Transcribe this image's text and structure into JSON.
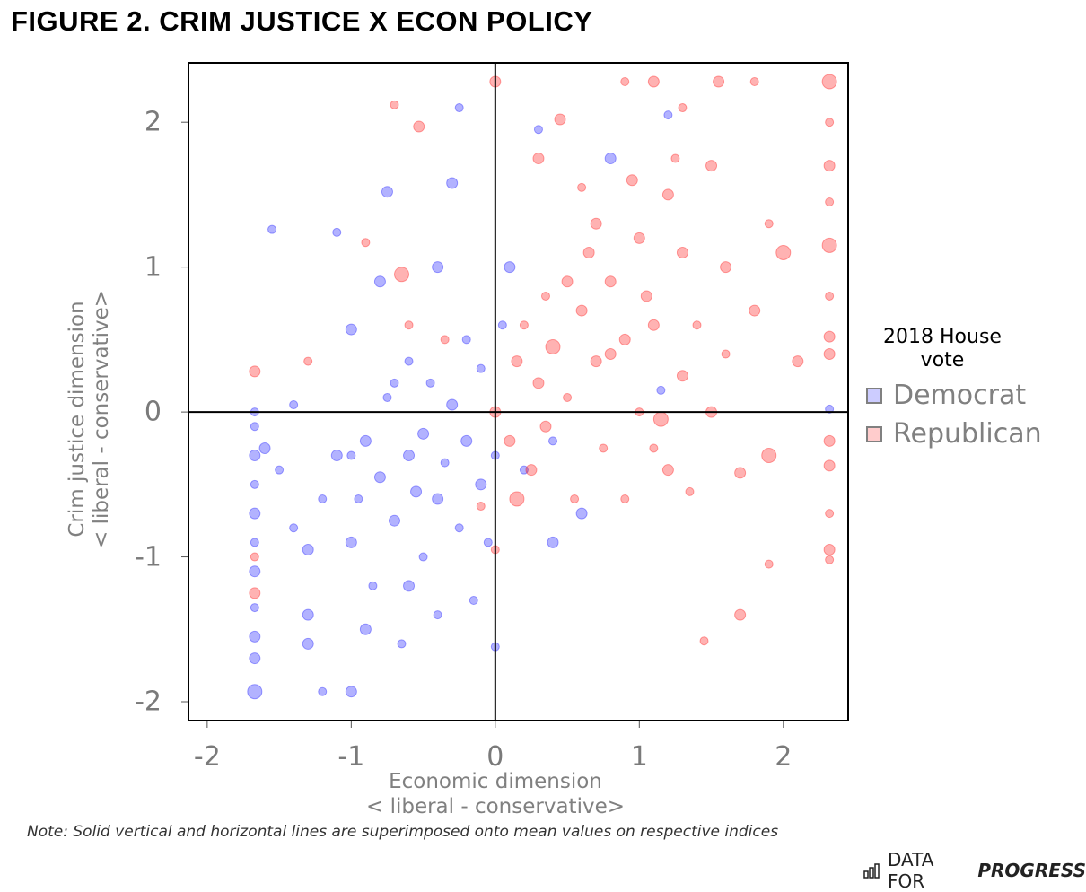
{
  "title": "FIGURE 2. CRIM JUSTICE X ECON POLICY",
  "note": "Note: Solid vertical and horizontal lines are superimposed onto mean values on respective indices",
  "brand": {
    "prefix": "DATA FOR",
    "emphasis": "PROGRESS",
    "icon": "bar-chart-icon"
  },
  "chart_data": {
    "type": "scatter",
    "xlabel": "Economic dimension",
    "xlabel_sub": "< liberal - conservative>",
    "ylabel": "Crim justice dimension",
    "ylabel_sub": "< liberal - conservative>",
    "xlim": [
      -2.13,
      2.45
    ],
    "ylim": [
      -2.13,
      2.41
    ],
    "xticks": [
      -2,
      -1,
      0,
      1,
      2
    ],
    "yticks": [
      -2,
      -1,
      0,
      1,
      2
    ],
    "grid": false,
    "reference_lines": {
      "x": 0,
      "y": 0
    },
    "legend": {
      "title": "2018 House vote",
      "title_line1": "2018 House",
      "title_line2": "vote",
      "placement": "right"
    },
    "series": [
      {
        "name": "Democrat",
        "color": "#0000ff",
        "key_color": "#ccccff",
        "points": [
          [
            -1.67,
            -1.93,
            3
          ],
          [
            -1.67,
            -1.7,
            2
          ],
          [
            -1.67,
            -1.55,
            2
          ],
          [
            -1.67,
            -1.35,
            1
          ],
          [
            -1.67,
            -1.1,
            2
          ],
          [
            -1.67,
            -0.9,
            1
          ],
          [
            -1.67,
            -0.7,
            2
          ],
          [
            -1.67,
            -0.5,
            1
          ],
          [
            -1.67,
            -0.3,
            2
          ],
          [
            -1.67,
            -0.1,
            1
          ],
          [
            -1.67,
            0,
            1
          ],
          [
            -1.6,
            -0.25,
            2
          ],
          [
            -1.5,
            -0.4,
            1
          ],
          [
            -1.4,
            -0.8,
            1
          ],
          [
            -1.3,
            -1.4,
            2
          ],
          [
            -1.3,
            -0.95,
            2
          ],
          [
            -1.2,
            -0.6,
            1
          ],
          [
            -1.2,
            -1.93,
            1
          ],
          [
            -1.1,
            -0.3,
            2
          ],
          [
            -1.0,
            -1.93,
            2
          ],
          [
            -1.0,
            -0.9,
            2
          ],
          [
            -0.95,
            -0.6,
            1
          ],
          [
            -0.9,
            -0.2,
            2
          ],
          [
            -0.85,
            -1.2,
            1
          ],
          [
            -0.8,
            -0.45,
            2
          ],
          [
            -0.75,
            0.1,
            1
          ],
          [
            -0.75,
            1.52,
            2
          ],
          [
            -0.7,
            -0.75,
            2
          ],
          [
            -0.65,
            -1.6,
            1
          ],
          [
            -0.6,
            -0.3,
            2
          ],
          [
            -0.6,
            0.35,
            1
          ],
          [
            -0.55,
            -0.55,
            2
          ],
          [
            -0.5,
            -1.0,
            1
          ],
          [
            -0.5,
            -0.15,
            2
          ],
          [
            -0.45,
            0.2,
            1
          ],
          [
            -0.4,
            -0.6,
            2
          ],
          [
            -0.4,
            -1.4,
            1
          ],
          [
            -0.35,
            -0.35,
            1
          ],
          [
            -0.3,
            0.05,
            2
          ],
          [
            -0.3,
            1.58,
            2
          ],
          [
            -0.25,
            -0.8,
            1
          ],
          [
            -0.2,
            -0.2,
            2
          ],
          [
            -0.2,
            0.5,
            1
          ],
          [
            -0.15,
            -1.3,
            1
          ],
          [
            -0.1,
            -0.5,
            2
          ],
          [
            -0.1,
            0.3,
            1
          ],
          [
            -0.05,
            -0.9,
            1
          ],
          [
            0,
            -1.62,
            1
          ],
          [
            0,
            -0.3,
            1
          ],
          [
            0.05,
            0.6,
            1
          ],
          [
            0.1,
            1.0,
            2
          ],
          [
            0.3,
            1.95,
            1
          ],
          [
            0.2,
            -0.4,
            1
          ],
          [
            0.4,
            -0.2,
            1
          ],
          [
            0.4,
            -0.9,
            2
          ],
          [
            0.6,
            -0.7,
            2
          ],
          [
            0.8,
            1.75,
            2
          ],
          [
            1.2,
            2.05,
            1
          ],
          [
            -1.55,
            1.26,
            1
          ],
          [
            -1.1,
            1.24,
            1
          ],
          [
            -1.0,
            0.57,
            2
          ],
          [
            -0.8,
            0.9,
            2
          ],
          [
            -0.4,
            1.0,
            2
          ],
          [
            -1.4,
            0.05,
            1
          ],
          [
            -0.25,
            2.1,
            1
          ],
          [
            2.32,
            0.02,
            1
          ],
          [
            1.15,
            0.15,
            1
          ],
          [
            -1.3,
            -1.6,
            2
          ],
          [
            -0.9,
            -1.5,
            2
          ],
          [
            -0.6,
            -1.2,
            2
          ],
          [
            -1.0,
            -0.3,
            1
          ],
          [
            -0.7,
            0.2,
            1
          ]
        ]
      },
      {
        "name": "Republican",
        "color": "#ff0000",
        "key_color": "#ffcccc",
        "points": [
          [
            2.32,
            2.28,
            3
          ],
          [
            2.32,
            2.0,
            1
          ],
          [
            2.32,
            1.7,
            2
          ],
          [
            2.32,
            1.45,
            1
          ],
          [
            2.32,
            1.15,
            3
          ],
          [
            2.32,
            0.8,
            1
          ],
          [
            2.32,
            0.52,
            2
          ],
          [
            2.32,
            0.4,
            2
          ],
          [
            2.32,
            -0.2,
            2
          ],
          [
            2.32,
            -0.37,
            2
          ],
          [
            2.32,
            -0.95,
            2
          ],
          [
            2.32,
            -1.02,
            1
          ],
          [
            2.32,
            -0.7,
            1
          ],
          [
            0,
            2.28,
            2
          ],
          [
            -0.53,
            1.97,
            2
          ],
          [
            -0.7,
            2.12,
            1
          ],
          [
            0.3,
            1.75,
            2
          ],
          [
            0.45,
            2.02,
            2
          ],
          [
            0.6,
            1.55,
            1
          ],
          [
            0.9,
            2.28,
            1
          ],
          [
            1.1,
            2.28,
            2
          ],
          [
            1.3,
            2.1,
            1
          ],
          [
            1.55,
            2.28,
            2
          ],
          [
            1.8,
            2.28,
            1
          ],
          [
            1.5,
            1.7,
            2
          ],
          [
            1.2,
            1.5,
            2
          ],
          [
            1.0,
            1.2,
            2
          ],
          [
            0.8,
            0.9,
            2
          ],
          [
            0.6,
            0.7,
            2
          ],
          [
            0.4,
            0.45,
            3
          ],
          [
            0.3,
            0.2,
            2
          ],
          [
            0.2,
            0.6,
            1
          ],
          [
            0.1,
            -0.2,
            2
          ],
          [
            0.15,
            0.35,
            2
          ],
          [
            0.25,
            -0.4,
            2
          ],
          [
            0.35,
            -0.1,
            2
          ],
          [
            0.5,
            0.1,
            1
          ],
          [
            0.55,
            -0.6,
            1
          ],
          [
            0.7,
            0.35,
            2
          ],
          [
            0.75,
            -0.25,
            1
          ],
          [
            0.9,
            0.5,
            2
          ],
          [
            1.0,
            0.0,
            1
          ],
          [
            1.05,
            0.8,
            2
          ],
          [
            1.1,
            -0.25,
            1
          ],
          [
            1.15,
            -0.05,
            3
          ],
          [
            1.2,
            -0.4,
            2
          ],
          [
            1.3,
            0.25,
            2
          ],
          [
            1.4,
            0.6,
            1
          ],
          [
            1.5,
            0.0,
            2
          ],
          [
            1.6,
            1.0,
            2
          ],
          [
            1.7,
            -0.42,
            2
          ],
          [
            1.7,
            -1.4,
            2
          ],
          [
            1.45,
            -1.58,
            1
          ],
          [
            1.9,
            -0.3,
            3
          ],
          [
            1.9,
            -1.05,
            1
          ],
          [
            2.0,
            1.1,
            3
          ],
          [
            2.1,
            0.35,
            2
          ],
          [
            1.9,
            1.3,
            1
          ],
          [
            1.8,
            0.7,
            2
          ],
          [
            0.15,
            -0.6,
            3
          ],
          [
            -0.1,
            -0.65,
            1
          ],
          [
            -0.35,
            0.5,
            1
          ],
          [
            -0.6,
            0.6,
            1
          ],
          [
            -0.65,
            0.95,
            3
          ],
          [
            -1.67,
            0.28,
            2
          ],
          [
            -1.3,
            0.35,
            1
          ],
          [
            -0.9,
            1.17,
            1
          ],
          [
            -1.67,
            -1.0,
            1
          ],
          [
            -1.67,
            -1.25,
            2
          ],
          [
            0.0,
            -0.95,
            1
          ],
          [
            0.7,
            1.3,
            2
          ],
          [
            1.25,
            1.75,
            1
          ],
          [
            0.65,
            1.1,
            2
          ],
          [
            0.9,
            -0.6,
            1
          ],
          [
            1.35,
            -0.55,
            1
          ],
          [
            0.5,
            0.9,
            2
          ],
          [
            0.8,
            0.4,
            2
          ],
          [
            1.1,
            0.6,
            2
          ],
          [
            0.35,
            0.8,
            1
          ],
          [
            1.3,
            1.1,
            2
          ],
          [
            0.95,
            1.6,
            2
          ],
          [
            1.6,
            0.4,
            1
          ],
          [
            0.0,
            0.0,
            2
          ]
        ]
      }
    ]
  }
}
